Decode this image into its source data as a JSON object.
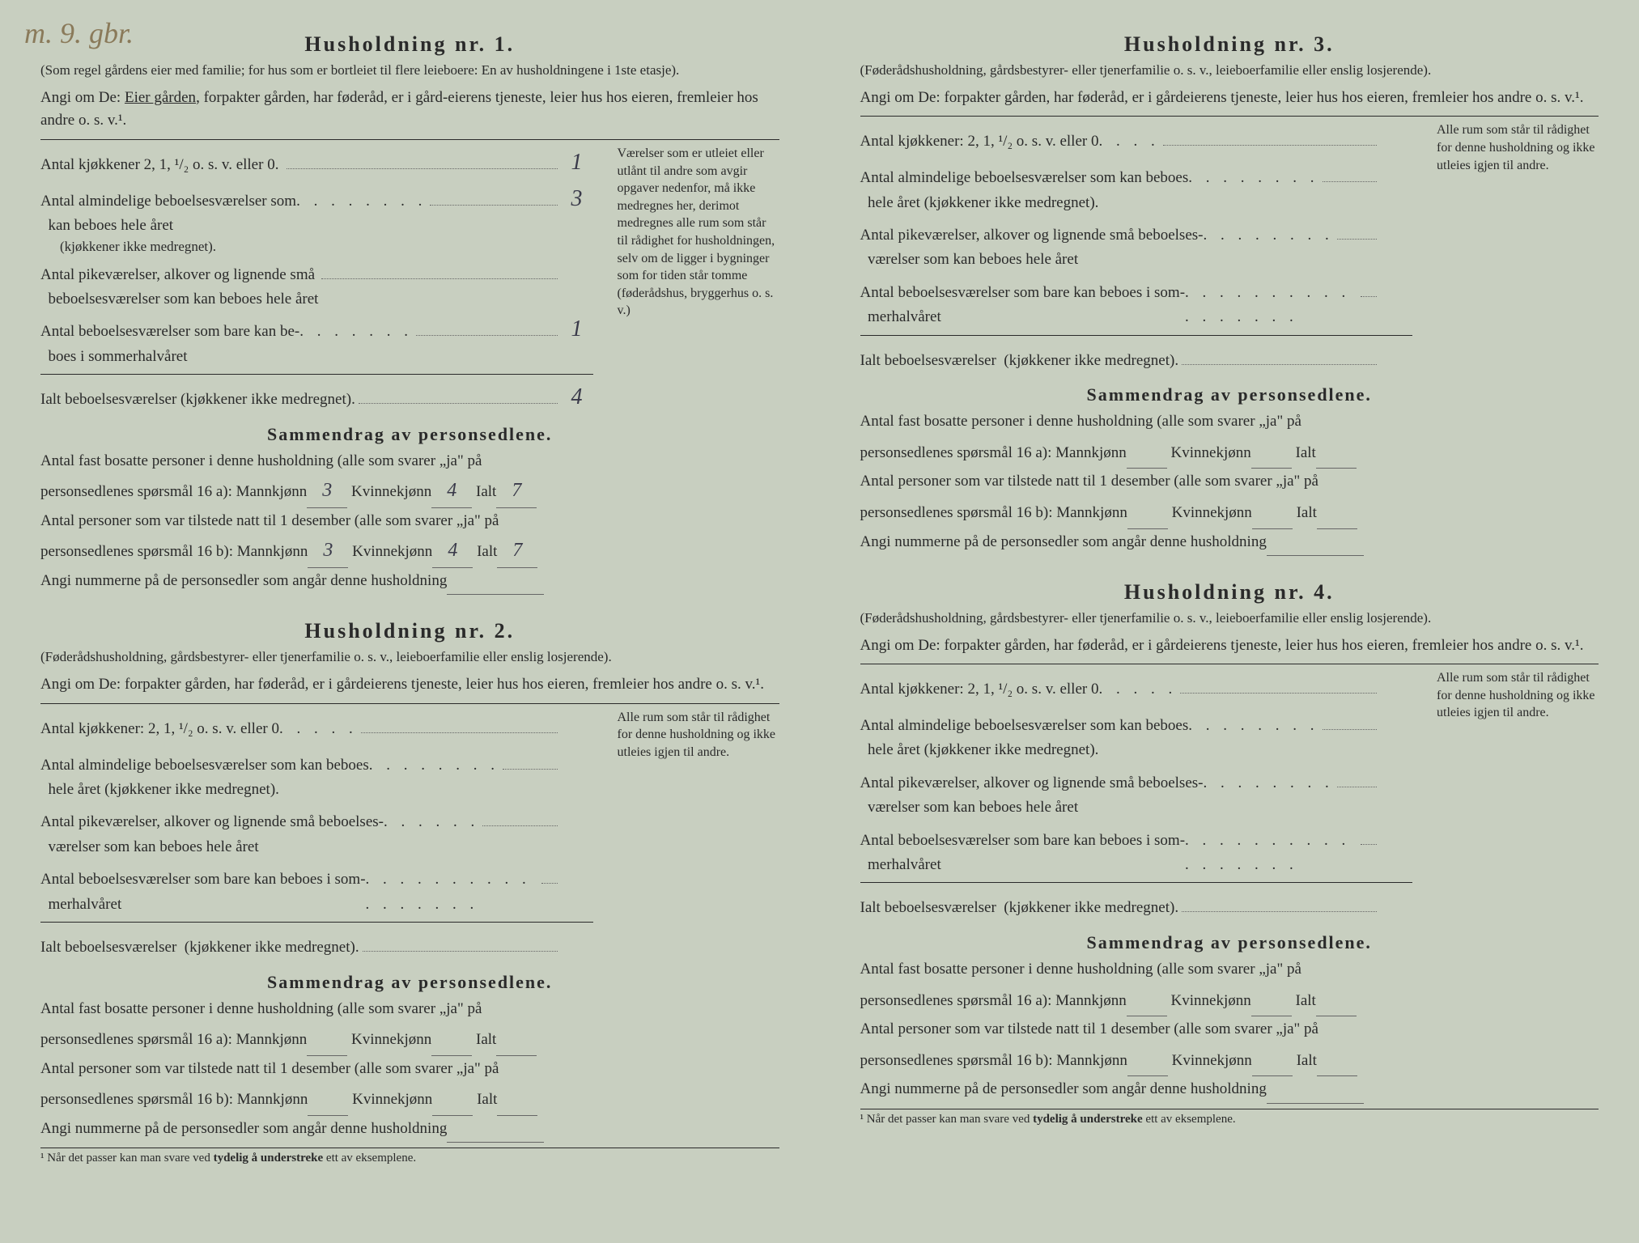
{
  "handwritten_annotation": "m. 9. gbr.",
  "households": [
    {
      "title": "Husholdning nr. 1.",
      "subtitle": "(Som regel gårdens eier med familie; for hus som er bortleiet til flere leieboere: En av husholdningene i 1ste etasje).",
      "angi_prefix": "Angi om De: ",
      "angi_underlined": "Eier gården",
      "angi_rest": ", forpakter gården, har føderåd, er i gård-eierens tjeneste, leier hus hos eieren, fremleier hos andre o. s. v.¹.",
      "rows": [
        {
          "label": "Antal kjøkkener 2, 1, ¹/₂ o. s. v. eller 0",
          "dots": " .",
          "value": "1"
        },
        {
          "label": "Antal almindelige beboelsesværelser som\n  kan beboes hele året",
          "dots": " . . . . . . . .",
          "sub": "(kjøkkener ikke medregnet).",
          "value": "3"
        },
        {
          "label": "Antal pikeværelser, alkover og lignende små\n  beboelsesværelser som kan beboes hele året",
          "dots": "",
          "value": ""
        },
        {
          "label": "Antal beboelsesværelser som bare kan be-\n  boes i sommerhalvåret",
          "dots": " . . . . . . .",
          "value": "1"
        },
        {
          "label": "Ialt beboelsesværelser (kjøkkener ikke medregnet).",
          "dots": "",
          "value": "4",
          "total": true
        }
      ],
      "side_note": "Værelser som er utleiet eller utlånt til andre som avgir opgaver nedenfor, må ikke medregnes her, derimot medregnes alle rum som står til rådighet for husholdningen, selv om de ligger i bygninger som for tiden står tomme (føderådshus, bryggerhus o. s. v.)",
      "summary": {
        "title": "Sammendrag av personsedlene.",
        "line1_pre": "Antal fast bosatte personer i denne husholdning (alle som svarer „ja\" på",
        "line1_post": "personsedlenes spørsmål 16 a): Mannkjønn",
        "m1": "3",
        "k1": "4",
        "i1": "7",
        "line2_pre": "Antal personer som var tilstede natt til 1 desember (alle som svarer „ja\" på",
        "line2_post": "personsedlenes spørsmål 16 b): Mannkjønn",
        "m2": "3",
        "k2": "4",
        "i2": "7",
        "line3": "Angi nummerne på de personsedler som angår denne husholdning"
      }
    },
    {
      "title": "Husholdning nr. 2.",
      "subtitle": "(Føderådshusholdning, gårdsbestyrer- eller tjenerfamilie o. s. v., leieboerfamilie eller enslig losjerende).",
      "angi_prefix": "Angi om De:  ",
      "angi_rest": "forpakter gården, har føderåd, er i gårdeierens tjeneste, leier hus hos eieren, fremleier hos andre o. s. v.¹.",
      "rows": [
        {
          "label": "Antal kjøkkener: 2, 1, ¹/₂ o. s. v. eller 0",
          "dots": " . . . . .",
          "value": ""
        },
        {
          "label": "Antal almindelige beboelsesværelser som kan beboes\n  hele året (kjøkkener ikke medregnet).",
          "dots": " . . . . . . . .",
          "value": ""
        },
        {
          "label": "Antal pikeværelser, alkover og lignende små beboelses-\n  værelser som kan beboes hele året",
          "dots": " . . . . . .",
          "value": ""
        },
        {
          "label": "Antal beboelsesværelser som bare kan beboes i som-\n  merhalvåret",
          "dots": " . . . . . . . . . . . . . . . . .",
          "value": ""
        },
        {
          "label": "Ialt beboelsesværelser  (kjøkkener ikke medregnet).",
          "dots": "",
          "value": "",
          "total": true
        }
      ],
      "side_note": "Alle rum som står til rådighet for denne husholdning og ikke utleies igjen til andre.",
      "summary": {
        "title": "Sammendrag av personsedlene.",
        "line1_pre": "Antal fast bosatte personer i denne husholdning (alle som svarer „ja\" på",
        "line1_post": "personsedlenes spørsmål 16 a): Mannkjønn",
        "m1": "",
        "k1": "",
        "i1": "",
        "line2_pre": "Antal personer som var tilstede natt til 1 desember (alle som svarer „ja\" på",
        "line2_post": "personsedlenes spørsmål 16 b): Mannkjønn",
        "m2": "",
        "k2": "",
        "i2": "",
        "line3": "Angi nummerne på de personsedler som angår denne husholdning"
      },
      "footnote": "¹  Når det passer kan man svare ved tydelig å understreke ett av eksemplene."
    },
    {
      "title": "Husholdning nr. 3.",
      "subtitle": "(Føderådshusholdning, gårdsbestyrer- eller tjenerfamilie o. s. v., leieboerfamilie eller enslig losjerende).",
      "angi_prefix": "Angi om De:  ",
      "angi_rest": "forpakter gården, har føderåd, er i gårdeierens tjeneste, leier hus hos eieren, fremleier hos andre o. s. v.¹.",
      "rows": [
        {
          "label": "Antal kjøkkener: 2, 1, ¹/₂ o. s. v. eller 0",
          "dots": " . . . .",
          "value": ""
        },
        {
          "label": "Antal almindelige beboelsesværelser som kan beboes\n  hele året (kjøkkener ikke medregnet).",
          "dots": " . . . . . . . .",
          "value": ""
        },
        {
          "label": "Antal pikeværelser, alkover og lignende små beboelses-\n  værelser som kan beboes hele året",
          "dots": " . . . . . . . .",
          "value": ""
        },
        {
          "label": "Antal beboelsesværelser som bare kan beboes i som-\n  merhalvåret",
          "dots": " . . . . . . . . . . . . . . . . .",
          "value": ""
        },
        {
          "label": "Ialt beboelsesværelser  (kjøkkener ikke medregnet).",
          "dots": "",
          "value": "",
          "total": true
        }
      ],
      "side_note": "Alle rum som står til rådighet for denne husholdning og ikke utleies igjen til andre.",
      "summary": {
        "title": "Sammendrag av personsedlene.",
        "line1_pre": "Antal fast bosatte personer i denne husholdning (alle som svarer „ja\" på",
        "line1_post": "personsedlenes spørsmål 16 a): Mannkjønn",
        "m1": "",
        "k1": "",
        "i1": "",
        "line2_pre": "Antal personer som var tilstede natt til 1 desember (alle som svarer „ja\" på",
        "line2_post": "personsedlenes spørsmål 16 b): Mannkjønn",
        "m2": "",
        "k2": "",
        "i2": "",
        "line3": "Angi nummerne på de personsedler som angår denne husholdning"
      }
    },
    {
      "title": "Husholdning nr. 4.",
      "subtitle": "(Føderådshusholdning, gårdsbestyrer- eller tjenerfamilie o. s. v., leieboerfamilie eller enslig losjerende).",
      "angi_prefix": "Angi om De:  ",
      "angi_rest": "forpakter gården, har føderåd, er i gårdeierens tjeneste, leier hus hos eieren, fremleier hos andre o. s. v.¹.",
      "rows": [
        {
          "label": "Antal kjøkkener: 2, 1, ¹/₂ o. s. v. eller 0",
          "dots": " . . . . .",
          "value": ""
        },
        {
          "label": "Antal almindelige beboelsesværelser som kan beboes\n  hele året (kjøkkener ikke medregnet).",
          "dots": " . . . . . . . .",
          "value": ""
        },
        {
          "label": "Antal pikeværelser, alkover og lignende små beboelses-\n  værelser som kan beboes hele året",
          "dots": " . . . . . . . .",
          "value": ""
        },
        {
          "label": "Antal beboelsesværelser som bare kan beboes i som-\n  merhalvåret",
          "dots": " . . . . . . . . . . . . . . . . .",
          "value": ""
        },
        {
          "label": "Ialt beboelsesværelser  (kjøkkener ikke medregnet).",
          "dots": "",
          "value": "",
          "total": true
        }
      ],
      "side_note": "Alle rum som står til rådighet for denne husholdning og ikke utleies igjen til andre.",
      "summary": {
        "title": "Sammendrag av personsedlene.",
        "line1_pre": "Antal fast bosatte personer i denne husholdning (alle som svarer „ja\" på",
        "line1_post": "personsedlenes spørsmål 16 a): Mannkjønn",
        "m1": "",
        "k1": "",
        "i1": "",
        "line2_pre": "Antal personer som var tilstede natt til 1 desember (alle som svarer „ja\" på",
        "line2_post": "personsedlenes spørsmål 16 b): Mannkjønn",
        "m2": "",
        "k2": "",
        "i2": "",
        "line3": "Angi nummerne på de personsedler som angår denne husholdning"
      },
      "footnote": "¹  Når det passer kan man svare ved tydelig å understreke ett av eksemplene."
    }
  ],
  "labels": {
    "kvinne": " Kvinnekjønn",
    "ialt": " Ialt"
  }
}
